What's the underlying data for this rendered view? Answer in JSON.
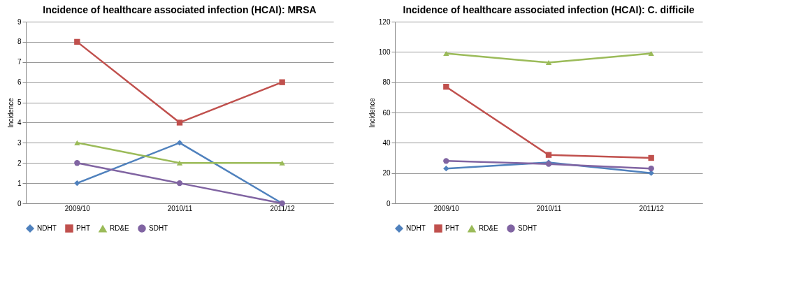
{
  "chart_data": [
    {
      "type": "line",
      "title": "Incidence of healthcare associated infection (HCAI): MRSA",
      "ylabel": "Incidence",
      "categories": [
        "2009/10",
        "2010/11",
        "2011/12"
      ],
      "ylim": [
        0,
        9
      ],
      "yticks": [
        0,
        1,
        2,
        3,
        4,
        5,
        6,
        7,
        8,
        9
      ],
      "grid": "y",
      "legend": "bottom",
      "series": [
        {
          "name": "NDHT",
          "color": "#4f81bd",
          "marker": "diamond",
          "values": [
            1,
            3,
            0
          ]
        },
        {
          "name": "PHT",
          "color": "#c0504d",
          "marker": "square",
          "values": [
            8,
            4,
            6
          ]
        },
        {
          "name": "RD&E",
          "color": "#9bbb59",
          "marker": "triangle",
          "values": [
            3,
            2,
            2
          ]
        },
        {
          "name": "SDHT",
          "color": "#8064a2",
          "marker": "circle",
          "values": [
            2,
            1,
            0
          ]
        }
      ]
    },
    {
      "type": "line",
      "title": "Incidence of healthcare associated infection (HCAI): C. difficile",
      "ylabel": "Incidence",
      "categories": [
        "2009/10",
        "2010/11",
        "2011/12"
      ],
      "ylim": [
        0,
        120
      ],
      "yticks": [
        0,
        20,
        40,
        60,
        80,
        100,
        120
      ],
      "grid": "y",
      "legend": "bottom",
      "series": [
        {
          "name": "NDHT",
          "color": "#4f81bd",
          "marker": "diamond",
          "values": [
            23,
            27,
            20
          ]
        },
        {
          "name": "PHT",
          "color": "#c0504d",
          "marker": "square",
          "values": [
            77,
            32,
            30
          ]
        },
        {
          "name": "RD&E",
          "color": "#9bbb59",
          "marker": "triangle",
          "values": [
            99,
            93,
            99
          ]
        },
        {
          "name": "SDHT",
          "color": "#8064a2",
          "marker": "circle",
          "values": [
            28,
            26,
            23
          ]
        }
      ]
    }
  ]
}
